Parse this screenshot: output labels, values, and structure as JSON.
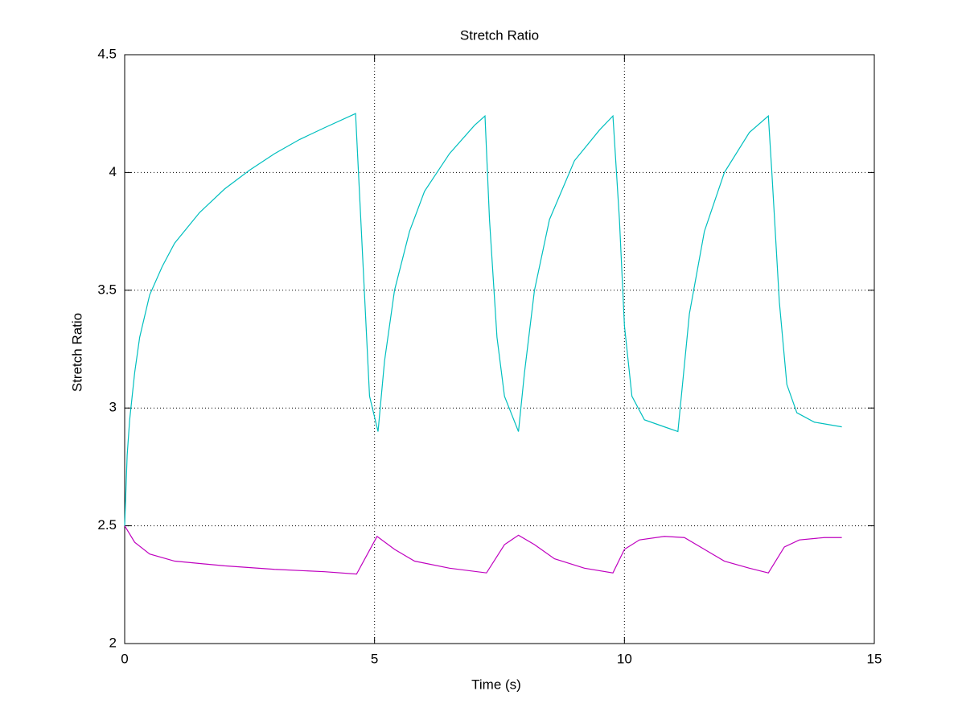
{
  "chart_data": {
    "type": "line",
    "title": "Stretch Ratio",
    "x_label": "Time (s)",
    "y_label": "Stretch Ratio",
    "xlim": [
      0,
      15
    ],
    "xticks": [
      0,
      5,
      10,
      15
    ],
    "ylim": [
      2,
      4.5
    ],
    "yticks": [
      2,
      2.5,
      3,
      3.5,
      4,
      4.5
    ],
    "grid": true,
    "series": [
      {
        "color": "#00bfbf",
        "x": [
          0,
          0.05,
          0.1,
          0.2,
          0.3,
          0.5,
          0.75,
          1.0,
          1.5,
          2.0,
          2.5,
          3.0,
          3.5,
          4.0,
          4.62,
          4.9,
          5.07,
          5.2,
          5.4,
          5.7,
          6.0,
          6.5,
          7.0,
          7.21,
          7.3,
          7.45,
          7.6,
          7.88,
          8.0,
          8.2,
          8.5,
          9.0,
          9.5,
          9.77,
          9.9,
          10.0,
          10.15,
          10.4,
          10.8,
          11.07,
          11.3,
          11.6,
          12.0,
          12.5,
          12.88,
          12.95,
          13.1,
          13.25,
          13.45,
          13.8,
          14.35
        ],
        "values": [
          2.5,
          2.8,
          2.95,
          3.15,
          3.3,
          3.48,
          3.6,
          3.7,
          3.83,
          3.93,
          4.01,
          4.08,
          4.14,
          4.19,
          4.25,
          3.05,
          2.9,
          3.2,
          3.5,
          3.75,
          3.92,
          4.08,
          4.2,
          4.24,
          3.8,
          3.3,
          3.05,
          2.9,
          3.15,
          3.5,
          3.8,
          4.05,
          4.18,
          4.24,
          3.8,
          3.35,
          3.05,
          2.95,
          2.92,
          2.9,
          3.4,
          3.75,
          4.0,
          4.17,
          4.24,
          4.0,
          3.45,
          3.1,
          2.98,
          2.94,
          2.92
        ]
      },
      {
        "color": "#bf00bf",
        "x": [
          0,
          0.2,
          0.5,
          1.0,
          2.0,
          3.0,
          4.0,
          4.64,
          5.05,
          5.4,
          5.8,
          6.5,
          7.24,
          7.6,
          7.88,
          8.2,
          8.6,
          9.2,
          9.77,
          10.0,
          10.3,
          10.8,
          11.2,
          11.6,
          12.0,
          12.5,
          12.88,
          13.2,
          13.5,
          14.0,
          14.35
        ],
        "values": [
          2.5,
          2.43,
          2.38,
          2.35,
          2.33,
          2.315,
          2.305,
          2.295,
          2.455,
          2.4,
          2.35,
          2.32,
          2.3,
          2.42,
          2.46,
          2.42,
          2.36,
          2.32,
          2.3,
          2.4,
          2.44,
          2.455,
          2.45,
          2.4,
          2.35,
          2.32,
          2.3,
          2.41,
          2.44,
          2.45,
          2.45
        ]
      }
    ]
  }
}
